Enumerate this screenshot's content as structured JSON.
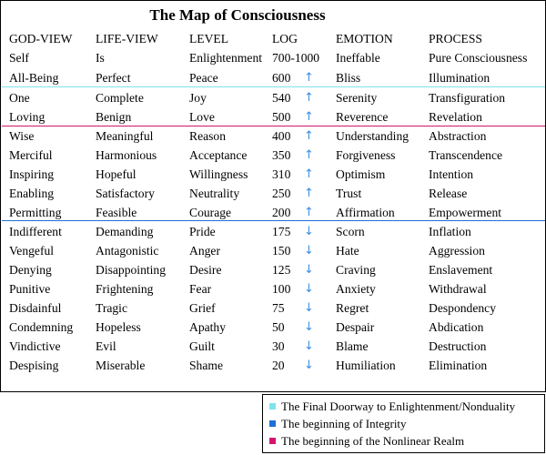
{
  "title": "The Map of Consciousness",
  "headers": [
    "GOD-VIEW",
    "LIFE-VIEW",
    "LEVEL",
    "LOG",
    "EMOTION",
    "PROCESS"
  ],
  "colors": {
    "nonduality": "#7fe3ec",
    "integrity": "#1e6fd6",
    "nonlinear": "#d4156f",
    "arrow": "#3a8ee0"
  },
  "rows": [
    {
      "god": "Self",
      "life": "Is",
      "level": "Enlightenment",
      "log": "700-1000",
      "arrow": "",
      "emotion": "Ineffable",
      "process": "Pure Consciousness"
    },
    {
      "god": "All-Being",
      "life": "Perfect",
      "level": "Peace",
      "log": "600",
      "arrow": "↑",
      "emotion": "Bliss",
      "process": "Illumination"
    },
    {
      "god": "One",
      "life": "Complete",
      "level": "Joy",
      "log": "540",
      "arrow": "↑",
      "emotion": "Serenity",
      "process": "Transfiguration"
    },
    {
      "god": "Loving",
      "life": "Benign",
      "level": "Love",
      "log": "500",
      "arrow": "↑",
      "emotion": "Reverence",
      "process": "Revelation"
    },
    {
      "god": "Wise",
      "life": "Meaningful",
      "level": "Reason",
      "log": "400",
      "arrow": "↑",
      "emotion": "Understanding",
      "process": "Abstraction"
    },
    {
      "god": "Merciful",
      "life": "Harmonious",
      "level": "Acceptance",
      "log": "350",
      "arrow": "↑",
      "emotion": "Forgiveness",
      "process": "Transcendence"
    },
    {
      "god": "Inspiring",
      "life": "Hopeful",
      "level": "Willingness",
      "log": "310",
      "arrow": "↑",
      "emotion": "Optimism",
      "process": "Intention"
    },
    {
      "god": "Enabling",
      "life": "Satisfactory",
      "level": "Neutrality",
      "log": "250",
      "arrow": "↑",
      "emotion": "Trust",
      "process": "Release"
    },
    {
      "god": "Permitting",
      "life": "Feasible",
      "level": "Courage",
      "log": "200",
      "arrow": "↑",
      "emotion": "Affirmation",
      "process": "Empowerment"
    },
    {
      "god": "Indifferent",
      "life": "Demanding",
      "level": "Pride",
      "log": "175",
      "arrow": "↓",
      "emotion": "Scorn",
      "process": "Inflation"
    },
    {
      "god": "Vengeful",
      "life": "Antagonistic",
      "level": "Anger",
      "log": "150",
      "arrow": "↓",
      "emotion": "Hate",
      "process": "Aggression"
    },
    {
      "god": "Denying",
      "life": "Disappointing",
      "level": "Desire",
      "log": "125",
      "arrow": "↓",
      "emotion": "Craving",
      "process": "Enslavement"
    },
    {
      "god": "Punitive",
      "life": "Frightening",
      "level": "Fear",
      "log": "100",
      "arrow": "↓",
      "emotion": "Anxiety",
      "process": "Withdrawal"
    },
    {
      "god": "Disdainful",
      "life": "Tragic",
      "level": "Grief",
      "log": "75",
      "arrow": "↓",
      "emotion": "Regret",
      "process": "Despondency"
    },
    {
      "god": "Condemning",
      "life": "Hopeless",
      "level": "Apathy",
      "log": "50",
      "arrow": "↓",
      "emotion": "Despair",
      "process": "Abdication"
    },
    {
      "god": "Vindictive",
      "life": "Evil",
      "level": "Guilt",
      "log": "30",
      "arrow": "↓",
      "emotion": "Blame",
      "process": "Destruction"
    },
    {
      "god": "Despising",
      "life": "Miserable",
      "level": "Shame",
      "log": "20",
      "arrow": "↓",
      "emotion": "Humiliation",
      "process": "Elimination"
    }
  ],
  "legend": [
    {
      "label": "The Final Doorway to Enlightenment/Nonduality",
      "color": "#7fe3ec"
    },
    {
      "label": "The beginning of Integrity",
      "color": "#1e6fd6"
    },
    {
      "label": "The beginning of the Nonlinear Realm",
      "color": "#d4156f"
    }
  ]
}
